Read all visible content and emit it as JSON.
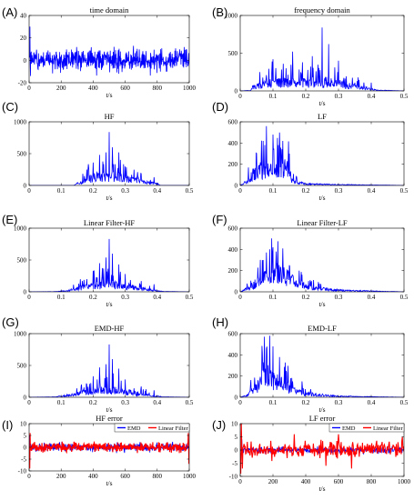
{
  "chart_data": [
    {
      "id": "A",
      "letter": "(A)",
      "type": "line",
      "title": "time domain",
      "xlabel": "t/s",
      "xlim": [
        0,
        1000
      ],
      "ylim": [
        -20,
        40
      ],
      "xticks": [
        0,
        200,
        400,
        600,
        800,
        1000
      ],
      "yticks": [
        -20,
        0,
        20,
        40
      ],
      "series": [
        {
          "color": "#0000ff",
          "kind": "noise",
          "amp": 7,
          "seed": 1,
          "n": 600,
          "spikes": [
            [
              5,
              30
            ],
            [
              8,
              -14
            ],
            [
              560,
              -12
            ],
            [
              530,
              12
            ]
          ]
        }
      ]
    },
    {
      "id": "B",
      "letter": "(B)",
      "type": "line",
      "title": "frequency domain",
      "xlabel": "t/s",
      "xlim": [
        0,
        0.5
      ],
      "ylim": [
        0,
        1000
      ],
      "xticks": [
        0,
        0.1,
        0.2,
        0.3,
        0.4,
        0.5
      ],
      "yticks": [
        0,
        500,
        1000
      ],
      "series": [
        {
          "color": "#0000ff",
          "kind": "spectrum",
          "seed": 2,
          "n": 400,
          "env": [
            [
              0,
              0
            ],
            [
              0.03,
              5
            ],
            [
              0.04,
              60
            ],
            [
              0.1,
              120
            ],
            [
              0.2,
              120
            ],
            [
              0.3,
              100
            ],
            [
              0.38,
              40
            ],
            [
              0.42,
              10
            ],
            [
              0.5,
              0
            ]
          ],
          "peaks": [
            [
              0.06,
              250
            ],
            [
              0.1,
              420
            ],
            [
              0.14,
              300
            ],
            [
              0.16,
              520
            ],
            [
              0.19,
              380
            ],
            [
              0.22,
              460
            ],
            [
              0.25,
              840
            ],
            [
              0.27,
              620
            ],
            [
              0.3,
              400
            ],
            [
              0.36,
              180
            ],
            [
              0.4,
              110
            ]
          ]
        }
      ]
    },
    {
      "id": "C",
      "letter": "(C)",
      "type": "line",
      "title": "HF",
      "xlabel": "t/s",
      "xlim": [
        0,
        0.5
      ],
      "ylim": [
        0,
        1000
      ],
      "xticks": [
        0,
        0.1,
        0.2,
        0.3,
        0.4,
        0.5
      ],
      "yticks": [
        0,
        500,
        1000
      ],
      "series": [
        {
          "color": "#0000ff",
          "kind": "spectrum",
          "seed": 3,
          "n": 400,
          "env": [
            [
              0,
              0
            ],
            [
              0.14,
              0
            ],
            [
              0.16,
              60
            ],
            [
              0.2,
              150
            ],
            [
              0.28,
              150
            ],
            [
              0.35,
              60
            ],
            [
              0.4,
              30
            ],
            [
              0.41,
              0
            ],
            [
              0.5,
              0
            ]
          ],
          "peaks": [
            [
              0.18,
              250
            ],
            [
              0.2,
              360
            ],
            [
              0.22,
              480
            ],
            [
              0.24,
              520
            ],
            [
              0.25,
              840
            ],
            [
              0.26,
              600
            ],
            [
              0.28,
              520
            ],
            [
              0.3,
              300
            ],
            [
              0.35,
              180
            ],
            [
              0.39,
              130
            ]
          ]
        }
      ]
    },
    {
      "id": "D",
      "letter": "(D)",
      "type": "line",
      "title": "LF",
      "xlabel": "t/s",
      "xlim": [
        0,
        0.5
      ],
      "ylim": [
        0,
        600
      ],
      "xticks": [
        0,
        0.1,
        0.2,
        0.3,
        0.4,
        0.5
      ],
      "yticks": [
        0,
        200,
        400,
        600
      ],
      "series": [
        {
          "color": "#0000ff",
          "kind": "spectrum",
          "seed": 4,
          "n": 400,
          "env": [
            [
              0,
              0
            ],
            [
              0.02,
              40
            ],
            [
              0.04,
              120
            ],
            [
              0.06,
              150
            ],
            [
              0.15,
              160
            ],
            [
              0.16,
              40
            ],
            [
              0.2,
              15
            ],
            [
              0.3,
              8
            ],
            [
              0.5,
              0
            ]
          ],
          "peaks": [
            [
              0.05,
              300
            ],
            [
              0.07,
              420
            ],
            [
              0.08,
              560
            ],
            [
              0.1,
              480
            ],
            [
              0.12,
              500
            ],
            [
              0.13,
              420
            ],
            [
              0.15,
              300
            ]
          ]
        }
      ]
    },
    {
      "id": "E",
      "letter": "(E)",
      "type": "line",
      "title": "Linear Filter-HF",
      "xlabel": "t/s",
      "xlim": [
        0,
        0.5
      ],
      "ylim": [
        0,
        1000
      ],
      "xticks": [
        0,
        0.1,
        0.2,
        0.3,
        0.4,
        0.5
      ],
      "yticks": [
        0,
        500,
        1000
      ],
      "series": [
        {
          "color": "#0000ff",
          "kind": "spectrum",
          "seed": 5,
          "n": 400,
          "env": [
            [
              0,
              0
            ],
            [
              0.08,
              3
            ],
            [
              0.12,
              20
            ],
            [
              0.18,
              90
            ],
            [
              0.25,
              130
            ],
            [
              0.32,
              80
            ],
            [
              0.38,
              30
            ],
            [
              0.42,
              5
            ],
            [
              0.5,
              0
            ]
          ],
          "peaks": [
            [
              0.18,
              200
            ],
            [
              0.2,
              330
            ],
            [
              0.22,
              450
            ],
            [
              0.24,
              540
            ],
            [
              0.25,
              830
            ],
            [
              0.26,
              600
            ],
            [
              0.28,
              430
            ],
            [
              0.3,
              280
            ],
            [
              0.35,
              170
            ],
            [
              0.39,
              120
            ]
          ]
        }
      ]
    },
    {
      "id": "F",
      "letter": "(F)",
      "type": "line",
      "title": "Linear Filter-LF",
      "xlabel": "t/s",
      "xlim": [
        0,
        0.5
      ],
      "ylim": [
        0,
        600
      ],
      "xticks": [
        0,
        0.1,
        0.2,
        0.3,
        0.4,
        0.5
      ],
      "yticks": [
        0,
        200,
        400,
        600
      ],
      "series": [
        {
          "color": "#0000ff",
          "kind": "spectrum",
          "seed": 6,
          "n": 400,
          "env": [
            [
              0,
              0
            ],
            [
              0.02,
              30
            ],
            [
              0.05,
              90
            ],
            [
              0.09,
              200
            ],
            [
              0.13,
              180
            ],
            [
              0.17,
              90
            ],
            [
              0.22,
              40
            ],
            [
              0.3,
              15
            ],
            [
              0.5,
              0
            ]
          ],
          "peaks": [
            [
              0.07,
              300
            ],
            [
              0.09,
              400
            ],
            [
              0.1,
              420
            ],
            [
              0.11,
              380
            ],
            [
              0.13,
              410
            ],
            [
              0.15,
              250
            ]
          ]
        }
      ]
    },
    {
      "id": "G",
      "letter": "(G)",
      "type": "line",
      "title": "EMD-HF",
      "xlabel": "t/s",
      "xlim": [
        0,
        0.5
      ],
      "ylim": [
        0,
        1000
      ],
      "xticks": [
        0,
        0.1,
        0.2,
        0.3,
        0.4,
        0.5
      ],
      "yticks": [
        0,
        500,
        1000
      ],
      "series": [
        {
          "color": "#0000ff",
          "kind": "spectrum",
          "seed": 7,
          "n": 400,
          "env": [
            [
              0,
              0
            ],
            [
              0.08,
              5
            ],
            [
              0.12,
              30
            ],
            [
              0.18,
              90
            ],
            [
              0.25,
              130
            ],
            [
              0.32,
              80
            ],
            [
              0.38,
              30
            ],
            [
              0.42,
              5
            ],
            [
              0.5,
              0
            ]
          ],
          "peaks": [
            [
              0.18,
              200
            ],
            [
              0.2,
              330
            ],
            [
              0.22,
              470
            ],
            [
              0.24,
              520
            ],
            [
              0.25,
              830
            ],
            [
              0.26,
              600
            ],
            [
              0.28,
              450
            ],
            [
              0.3,
              280
            ],
            [
              0.35,
              170
            ],
            [
              0.39,
              110
            ]
          ]
        }
      ]
    },
    {
      "id": "H",
      "letter": "(H)",
      "type": "line",
      "title": "EMD-LF",
      "xlabel": "t/s",
      "xlim": [
        0,
        0.5
      ],
      "ylim": [
        0,
        600
      ],
      "xticks": [
        0,
        0.1,
        0.2,
        0.3,
        0.4,
        0.5
      ],
      "yticks": [
        0,
        200,
        400,
        600
      ],
      "series": [
        {
          "color": "#0000ff",
          "kind": "spectrum",
          "seed": 8,
          "n": 400,
          "env": [
            [
              0,
              0
            ],
            [
              0.02,
              20
            ],
            [
              0.05,
              100
            ],
            [
              0.08,
              220
            ],
            [
              0.12,
              150
            ],
            [
              0.16,
              70
            ],
            [
              0.2,
              35
            ],
            [
              0.3,
              10
            ],
            [
              0.5,
              0
            ]
          ],
          "peaks": [
            [
              0.07,
              330
            ],
            [
              0.08,
              460
            ],
            [
              0.09,
              580
            ],
            [
              0.1,
              480
            ],
            [
              0.12,
              380
            ],
            [
              0.14,
              250
            ],
            [
              0.16,
              150
            ]
          ]
        }
      ]
    },
    {
      "id": "I",
      "letter": "(I)",
      "type": "line",
      "title": "HF error",
      "xlabel": "t/s",
      "xlim": [
        0,
        1000
      ],
      "ylim": [
        -10,
        10
      ],
      "xticks": [
        0,
        200,
        400,
        600,
        800,
        1000
      ],
      "yticks": [
        -10,
        -5,
        0,
        5,
        10
      ],
      "legend": [
        "EMD",
        "Linear Filter"
      ],
      "legend_loc": "top-right",
      "series": [
        {
          "name": "EMD",
          "color": "#0000ff",
          "kind": "noise",
          "amp": 1.3,
          "seed": 9,
          "n": 500,
          "spikes": [
            [
              3,
              5
            ],
            [
              5,
              -6
            ]
          ]
        },
        {
          "name": "Linear Filter",
          "color": "#ff0000",
          "kind": "noise",
          "amp": 1.4,
          "seed": 10,
          "n": 500,
          "spikes": [
            [
              4,
              -9
            ],
            [
              6,
              6
            ],
            [
              995,
              6
            ],
            [
              998,
              -7
            ]
          ]
        }
      ]
    },
    {
      "id": "J",
      "letter": "(J)",
      "type": "line",
      "title": "LF error",
      "xlabel": "t/s",
      "xlim": [
        0,
        1000
      ],
      "ylim": [
        -10,
        10
      ],
      "xticks": [
        0,
        200,
        400,
        600,
        800,
        1000
      ],
      "yticks": [
        -10,
        -5,
        0,
        5,
        10
      ],
      "legend": [
        "EMD",
        "Linear Filter"
      ],
      "legend_loc": "top-right",
      "series": [
        {
          "name": "EMD",
          "color": "#0000ff",
          "kind": "noise",
          "amp": 0.8,
          "seed": 11,
          "n": 500,
          "spikes": [
            [
              10,
              4
            ],
            [
              12,
              -3
            ]
          ]
        },
        {
          "name": "Linear Filter",
          "color": "#ff0000",
          "kind": "noise",
          "amp": 2.2,
          "seed": 12,
          "n": 300,
          "spikes": [
            [
              5,
              -9
            ],
            [
              8,
              10
            ],
            [
              12,
              -7
            ],
            [
              330,
              6
            ],
            [
              525,
              -6
            ],
            [
              600,
              6
            ],
            [
              680,
              -7
            ],
            [
              990,
              5
            ]
          ]
        }
      ]
    }
  ]
}
